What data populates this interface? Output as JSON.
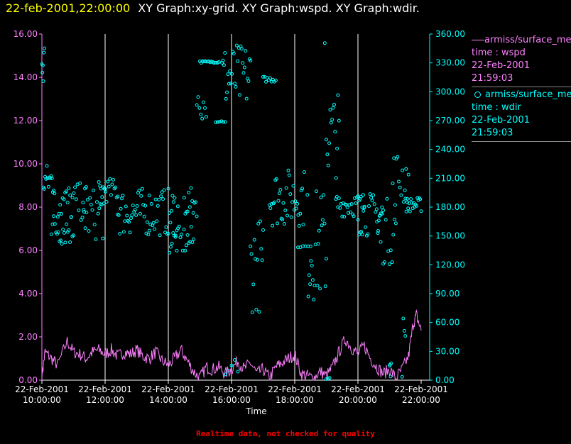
{
  "header": {
    "timestamp": "22-feb-2001,22:00:00",
    "titles": "XY Graph:xy-grid.  XY Graph:wspd.  XY Graph:wdir."
  },
  "legend": [
    {
      "line1": "armiss/surface_met",
      "line2": "time : wspd",
      "line3": "22-Feb-2001",
      "line4": "21:59:03",
      "color": "#ff80ff",
      "marker": "line"
    },
    {
      "line1": "armiss/surface_met",
      "line2": "time : wdir",
      "line3": "22-Feb-2001",
      "line4": "21:59:03",
      "color": "#00ffff",
      "marker": "circle"
    }
  ],
  "footer": "Realtime data, not checked for quality",
  "colors": {
    "wspd": "#ff80ff",
    "wdir": "#00ffff",
    "grid": "#ffffff",
    "timestamp": "#ffff00",
    "footer": "#ff0000"
  },
  "chart_data": {
    "type": "scatter",
    "xlabel": "Time",
    "x_ticks": [
      {
        "h": 10,
        "d": "22-Feb-2001",
        "t": "10:00:00"
      },
      {
        "h": 12,
        "d": "22-Feb-2001",
        "t": "12:00:00"
      },
      {
        "h": 14,
        "d": "22-Feb-2001",
        "t": "14:00:00"
      },
      {
        "h": 16,
        "d": "22-Feb-2001",
        "t": "16:00:00"
      },
      {
        "h": 18,
        "d": "22-Feb-2001",
        "t": "18:00:00"
      },
      {
        "h": 20,
        "d": "22-Feb-2001",
        "t": "20:00:00"
      },
      {
        "h": 22,
        "d": "22-Feb-2001",
        "t": "22:00:00"
      }
    ],
    "xlim": [
      10,
      22
    ],
    "grid": "vertical lines at x ticks",
    "y_left": {
      "ylim": [
        0,
        16
      ],
      "ticks": [
        "0.00",
        "2.00",
        "4.00",
        "6.00",
        "8.00",
        "10.00",
        "12.00",
        "14.00",
        "16.00"
      ]
    },
    "y_right": {
      "ylim": [
        0,
        360
      ],
      "ticks": [
        "0.00",
        "30.00",
        "60.00",
        "90.00",
        "120.00",
        "150.00",
        "180.00",
        "210.00",
        "240.00",
        "270.00",
        "300.00",
        "330.00",
        "360.00"
      ]
    },
    "series": [
      {
        "name": "armiss/surface_met time : wspd",
        "style": "line",
        "axis": "left",
        "keypoints": [
          [
            10.0,
            0.2
          ],
          [
            10.1,
            1.3
          ],
          [
            10.3,
            1.0
          ],
          [
            10.5,
            0.7
          ],
          [
            10.8,
            1.8
          ],
          [
            11.0,
            1.3
          ],
          [
            11.2,
            1.2
          ],
          [
            11.4,
            1.0
          ],
          [
            11.6,
            1.3
          ],
          [
            11.8,
            1.4
          ],
          [
            12.0,
            1.2
          ],
          [
            12.2,
            1.4
          ],
          [
            12.4,
            1.1
          ],
          [
            12.6,
            1.3
          ],
          [
            12.8,
            1.2
          ],
          [
            13.0,
            1.4
          ],
          [
            13.2,
            1.1
          ],
          [
            13.4,
            1.0
          ],
          [
            13.6,
            1.3
          ],
          [
            13.8,
            0.9
          ],
          [
            14.0,
            0.7
          ],
          [
            14.2,
            1.0
          ],
          [
            14.4,
            1.4
          ],
          [
            14.6,
            0.9
          ],
          [
            14.8,
            0.4
          ],
          [
            15.0,
            0.1
          ],
          [
            15.2,
            0.6
          ],
          [
            15.4,
            0.5
          ],
          [
            15.6,
            0.6
          ],
          [
            15.8,
            0.3
          ],
          [
            16.0,
            0.5
          ],
          [
            16.2,
            0.9
          ],
          [
            16.4,
            0.5
          ],
          [
            16.6,
            0.8
          ],
          [
            16.8,
            0.3
          ],
          [
            17.0,
            0.5
          ],
          [
            17.2,
            0.1
          ],
          [
            17.4,
            0.6
          ],
          [
            17.6,
            0.8
          ],
          [
            17.8,
            1.0
          ],
          [
            18.0,
            1.2
          ],
          [
            18.2,
            0.3
          ],
          [
            18.4,
            0.2
          ],
          [
            18.6,
            0.1
          ],
          [
            18.8,
            0.4
          ],
          [
            19.0,
            0.2
          ],
          [
            19.2,
            0.6
          ],
          [
            19.4,
            1.3
          ],
          [
            19.6,
            1.9
          ],
          [
            19.8,
            1.5
          ],
          [
            20.0,
            1.2
          ],
          [
            20.2,
            1.6
          ],
          [
            20.4,
            1.0
          ],
          [
            20.6,
            0.6
          ],
          [
            20.8,
            0.3
          ],
          [
            21.0,
            0.5
          ],
          [
            21.2,
            0.1
          ],
          [
            21.4,
            0.5
          ],
          [
            21.6,
            1.1
          ],
          [
            21.75,
            2.6
          ],
          [
            21.85,
            3.0
          ],
          [
            22.0,
            2.3
          ]
        ]
      },
      {
        "name": "armiss/surface_met time : wdir",
        "style": "circles",
        "axis": "right",
        "clusters": [
          {
            "x0": 10.0,
            "x1": 10.08,
            "lo": 295,
            "hi": 360,
            "n": 6
          },
          {
            "x0": 10.05,
            "x1": 10.4,
            "lo": 190,
            "hi": 225,
            "n": 14
          },
          {
            "x0": 10.3,
            "x1": 11.0,
            "lo": 140,
            "hi": 175,
            "n": 20
          },
          {
            "x0": 10.5,
            "x1": 11.4,
            "lo": 165,
            "hi": 205,
            "n": 24
          },
          {
            "x0": 11.3,
            "x1": 12.0,
            "lo": 145,
            "hi": 200,
            "n": 20
          },
          {
            "x0": 11.8,
            "x1": 12.4,
            "lo": 185,
            "hi": 210,
            "n": 18
          },
          {
            "x0": 12.4,
            "x1": 13.4,
            "lo": 150,
            "hi": 200,
            "n": 32
          },
          {
            "x0": 13.4,
            "x1": 14.3,
            "lo": 150,
            "hi": 200,
            "n": 28
          },
          {
            "x0": 14.0,
            "x1": 14.8,
            "lo": 130,
            "hi": 160,
            "n": 22
          },
          {
            "x0": 14.5,
            "x1": 14.9,
            "lo": 170,
            "hi": 200,
            "n": 12
          },
          {
            "x0": 14.9,
            "x1": 15.2,
            "lo": 270,
            "hi": 300,
            "n": 8
          },
          {
            "x0": 15.0,
            "x1": 15.6,
            "lo": 330,
            "hi": 332,
            "n": 16
          },
          {
            "x0": 15.5,
            "x1": 15.8,
            "lo": 268,
            "hi": 270,
            "n": 6
          },
          {
            "x0": 15.7,
            "x1": 16.6,
            "lo": 280,
            "hi": 350,
            "n": 30
          },
          {
            "x0": 16.6,
            "x1": 17.0,
            "lo": 70,
            "hi": 170,
            "n": 14
          },
          {
            "x0": 17.0,
            "x1": 17.4,
            "lo": 310,
            "hi": 316,
            "n": 10
          },
          {
            "x0": 17.2,
            "x1": 18.3,
            "lo": 160,
            "hi": 220,
            "n": 36
          },
          {
            "x0": 18.1,
            "x1": 18.5,
            "lo": 138,
            "hi": 140,
            "n": 6
          },
          {
            "x0": 18.4,
            "x1": 19.0,
            "lo": 80,
            "hi": 200,
            "n": 22
          },
          {
            "x0": 19.0,
            "x1": 19.4,
            "lo": 210,
            "hi": 300,
            "n": 14
          },
          {
            "x0": 19.3,
            "x1": 20.2,
            "lo": 170,
            "hi": 195,
            "n": 28
          },
          {
            "x0": 20.0,
            "x1": 20.8,
            "lo": 150,
            "hi": 195,
            "n": 24
          },
          {
            "x0": 20.6,
            "x1": 21.2,
            "lo": 120,
            "hi": 190,
            "n": 16
          },
          {
            "x0": 21.1,
            "x1": 21.6,
            "lo": 180,
            "hi": 240,
            "n": 14
          },
          {
            "x0": 21.5,
            "x1": 22.0,
            "lo": 175,
            "hi": 190,
            "n": 18
          },
          {
            "x0": 18.9,
            "x1": 19.0,
            "lo": 350,
            "hi": 352,
            "n": 1
          },
          {
            "x0": 21.0,
            "x1": 21.05,
            "lo": 0,
            "hi": 30,
            "n": 4
          },
          {
            "x0": 15.8,
            "x1": 16.2,
            "lo": 0,
            "hi": 25,
            "n": 5
          },
          {
            "x0": 19.0,
            "x1": 19.1,
            "lo": 0,
            "hi": 10,
            "n": 3
          },
          {
            "x0": 21.4,
            "x1": 21.5,
            "lo": 0,
            "hi": 70,
            "n": 4
          }
        ]
      }
    ]
  }
}
